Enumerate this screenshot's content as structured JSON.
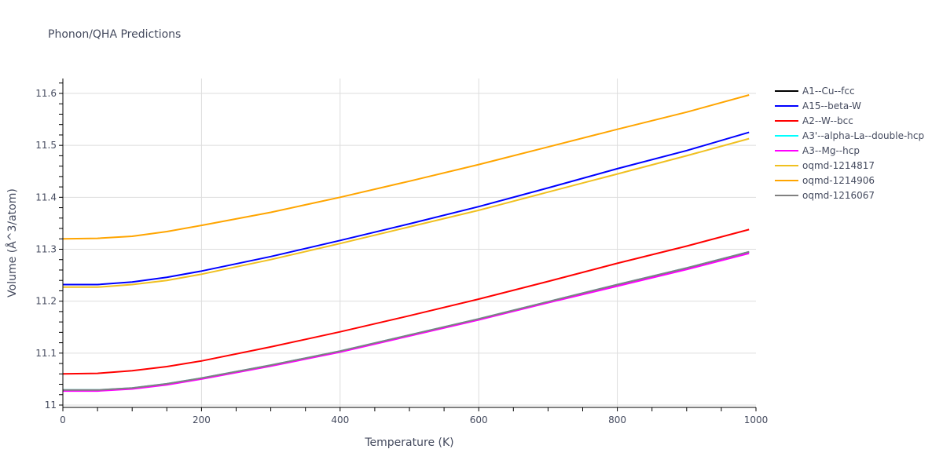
{
  "title": "Phonon/QHA Predictions",
  "chart_data": {
    "type": "line",
    "title": "Phonon/QHA Predictions",
    "xlabel": "Temperature (K)",
    "ylabel": "Volume (Å^3/atom)",
    "xlim": [
      0,
      1000
    ],
    "ylim": [
      10.995,
      11.63
    ],
    "xticks": [
      0,
      200,
      400,
      600,
      800,
      1000
    ],
    "yticks": [
      11,
      11.1,
      11.2,
      11.3,
      11.4,
      11.5,
      11.6
    ],
    "ytick_labels": [
      "11",
      "11.1",
      "11.2",
      "11.3",
      "11.4",
      "11.5",
      "11.6"
    ],
    "grid": true,
    "legend_position": "right",
    "x": [
      0,
      50,
      100,
      150,
      200,
      300,
      400,
      500,
      600,
      700,
      800,
      900,
      990
    ],
    "series": [
      {
        "name": "A1--Cu--fcc",
        "color": "#000000",
        "values": [
          11.028,
          11.028,
          11.032,
          11.04,
          11.051,
          11.076,
          11.103,
          11.134,
          11.165,
          11.198,
          11.231,
          11.263,
          11.295
        ]
      },
      {
        "name": "A15--beta-W",
        "color": "#0000ff",
        "values": [
          11.232,
          11.232,
          11.237,
          11.246,
          11.258,
          11.286,
          11.317,
          11.349,
          11.382,
          11.418,
          11.455,
          11.49,
          11.525
        ]
      },
      {
        "name": "A2--W--bcc",
        "color": "#ff0000",
        "values": [
          11.06,
          11.061,
          11.066,
          11.074,
          11.085,
          11.112,
          11.141,
          11.172,
          11.204,
          11.238,
          11.273,
          11.306,
          11.338
        ]
      },
      {
        "name": "A3'--alpha-La--double-hcp",
        "color": "#00ffff",
        "values": [
          11.029,
          11.029,
          11.033,
          11.041,
          11.052,
          11.077,
          11.104,
          11.135,
          11.166,
          11.199,
          11.232,
          11.264,
          11.295
        ]
      },
      {
        "name": "A3--Mg--hcp",
        "color": "#ff00ff",
        "values": [
          11.027,
          11.027,
          11.031,
          11.039,
          11.05,
          11.075,
          11.102,
          11.133,
          11.164,
          11.197,
          11.229,
          11.261,
          11.292
        ]
      },
      {
        "name": "oqmd-1214817",
        "color": "#f0c020",
        "values": [
          11.227,
          11.227,
          11.232,
          11.24,
          11.252,
          11.28,
          11.311,
          11.343,
          11.375,
          11.41,
          11.445,
          11.48,
          11.513
        ]
      },
      {
        "name": "oqmd-1214906",
        "color": "#ffa500",
        "values": [
          11.32,
          11.321,
          11.325,
          11.334,
          11.346,
          11.371,
          11.4,
          11.431,
          11.463,
          11.497,
          11.531,
          11.564,
          11.597
        ]
      },
      {
        "name": "oqmd-1216067",
        "color": "#808080",
        "values": [
          11.029,
          11.029,
          11.033,
          11.041,
          11.052,
          11.077,
          11.104,
          11.135,
          11.166,
          11.199,
          11.232,
          11.264,
          11.295
        ]
      }
    ]
  }
}
